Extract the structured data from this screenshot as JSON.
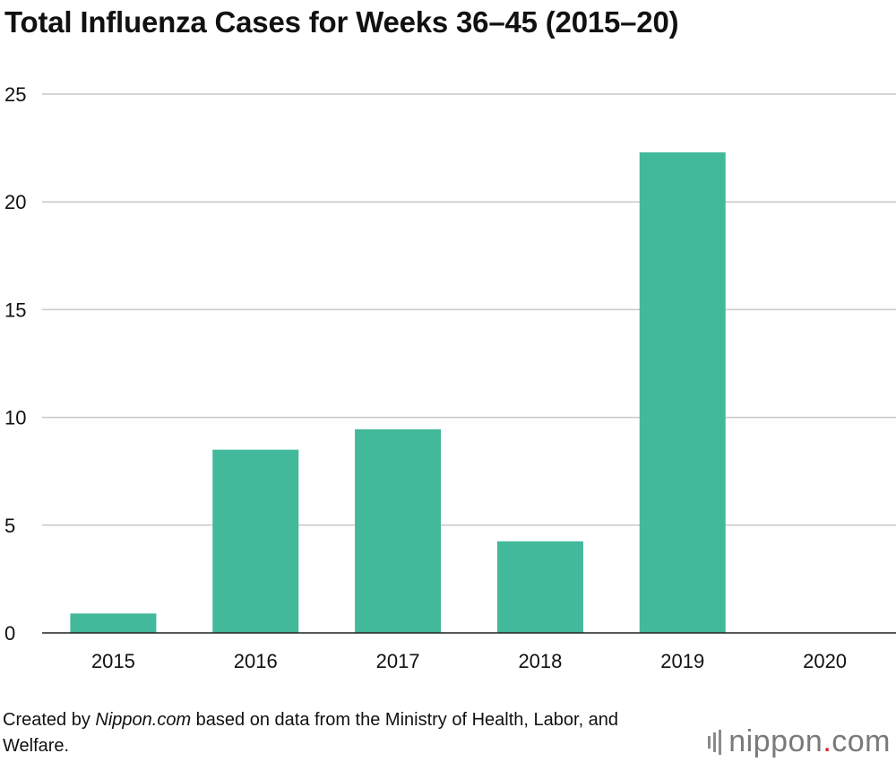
{
  "chart_data": {
    "type": "bar",
    "title": "Total Influenza Cases for Weeks 36–45 (2015–20)",
    "categories": [
      "2015",
      "2016",
      "2017",
      "2018",
      "2019",
      "2020"
    ],
    "values": [
      0.9,
      8.5,
      9.45,
      4.25,
      22.3,
      0
    ],
    "ylim": [
      0,
      25
    ],
    "yticks": [
      0,
      5,
      10,
      15,
      20,
      25
    ],
    "xlabel": "",
    "ylabel": "",
    "grid": true,
    "bar_color": "#41b99a"
  },
  "credit": {
    "prefix": "Created by ",
    "source_name": "Nippon.com",
    "suffix": " based on data from the Ministry of Health, Labor, and Welfare."
  },
  "logo": {
    "word": "nippon",
    "dot": ".",
    "tld": "com"
  }
}
